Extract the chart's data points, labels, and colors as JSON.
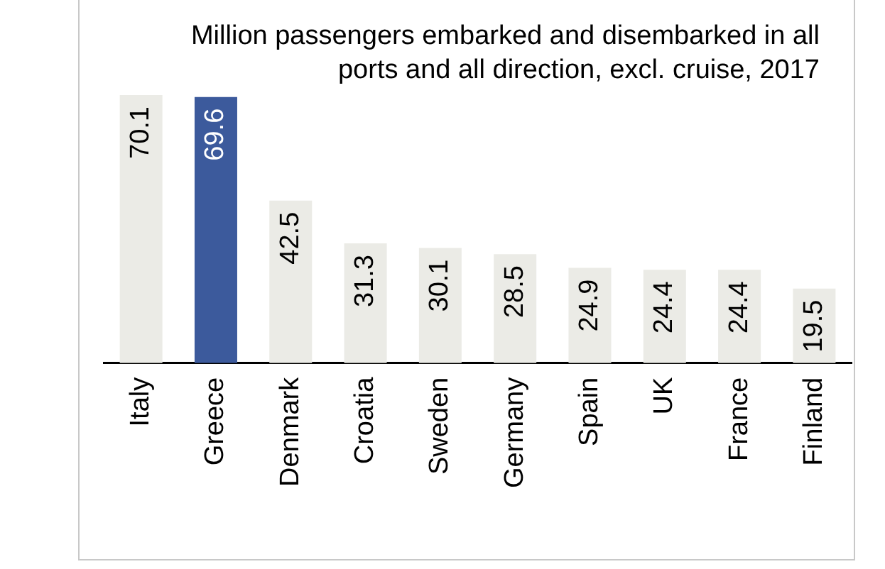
{
  "chart_data": {
    "type": "bar",
    "title": "Million passengers embarked and disembarked in all ports and all direction, excl. cruise, 2017",
    "categories": [
      "Italy",
      "Greece",
      "Denmark",
      "Croatia",
      "Sweden",
      "Germany",
      "Spain",
      "UK",
      "France",
      "Finland"
    ],
    "values": [
      70.1,
      69.6,
      42.5,
      31.3,
      30.1,
      28.5,
      24.9,
      24.4,
      24.4,
      19.5
    ],
    "colors": [
      "#ebebe6",
      "#3c5a9c",
      "#ebebe6",
      "#ebebe6",
      "#ebebe6",
      "#ebebe6",
      "#ebebe6",
      "#ebebe6",
      "#ebebe6",
      "#ebebe6"
    ],
    "data_labels": true,
    "grid": false,
    "legend": false
  }
}
